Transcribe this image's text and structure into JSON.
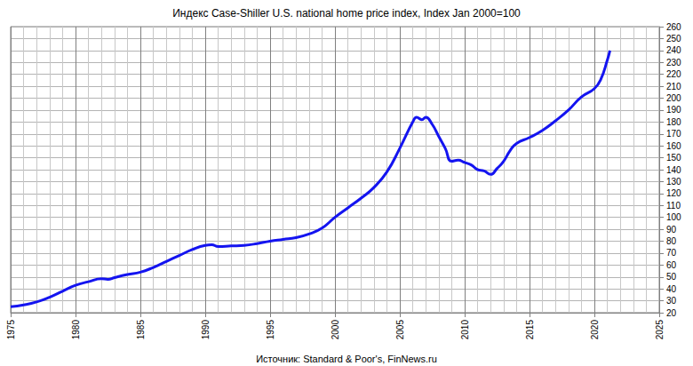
{
  "chart_data": {
    "type": "line",
    "title": "Индекс Case-Shiller U.S. national home price index, Index Jan 2000=100",
    "annotations": [
      "Источник: Standard & Poor's, FinNews.ru"
    ],
    "x": [
      1975,
      1976,
      1977,
      1978,
      1979,
      1980,
      1981,
      1982,
      1982.5,
      1983,
      1984,
      1985,
      1986,
      1987,
      1988,
      1989,
      1990,
      1990.5,
      1991,
      1992,
      1993,
      1994,
      1995,
      1996,
      1997,
      1998,
      1999,
      2000,
      2001,
      2002,
      2003,
      2004,
      2005,
      2006,
      2006.3,
      2006.7,
      2007,
      2007.5,
      2008,
      2008.5,
      2009,
      2009.5,
      2010,
      2010.5,
      2011,
      2011.5,
      2012,
      2012.5,
      2013,
      2013.5,
      2014,
      2015,
      2016,
      2017,
      2018,
      2019,
      2020,
      2020.5,
      2021,
      2021.2
    ],
    "values": [
      25,
      26.5,
      29,
      33,
      38,
      43,
      46,
      48.5,
      48,
      49.5,
      52,
      54,
      58,
      63,
      68,
      73,
      76.5,
      77,
      75.5,
      76,
      76.5,
      78,
      80,
      81.5,
      83,
      86,
      91,
      100,
      108,
      116,
      125,
      138,
      158,
      180,
      184,
      182,
      184,
      178,
      168,
      158,
      147,
      148,
      146,
      144,
      140,
      139,
      136,
      141,
      147,
      156,
      162,
      167,
      173,
      181,
      190,
      201,
      208,
      216,
      232,
      240
    ],
    "color": "#1414f0",
    "xlim": [
      1975,
      2025
    ],
    "xticks": [
      1975,
      1980,
      1985,
      1990,
      1995,
      2000,
      2005,
      2010,
      2015,
      2020,
      2025
    ],
    "ylim": [
      20,
      260
    ],
    "yticks": [
      20,
      30,
      40,
      50,
      60,
      70,
      80,
      90,
      100,
      110,
      120,
      130,
      140,
      150,
      160,
      170,
      180,
      190,
      200,
      210,
      220,
      230,
      240,
      250,
      260
    ],
    "grid": true
  }
}
